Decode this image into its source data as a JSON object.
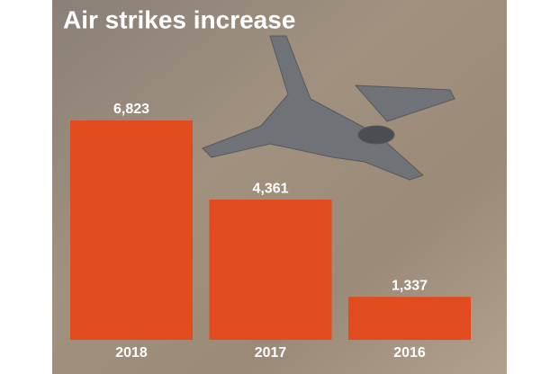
{
  "chart_data": {
    "type": "bar",
    "title": "Air strikes increase",
    "categories": [
      "2018",
      "2017",
      "2016"
    ],
    "values": [
      6823,
      4361,
      1337
    ],
    "value_labels": [
      "6,823",
      "4,361",
      "1,337"
    ],
    "color": "#e24b1e"
  }
}
